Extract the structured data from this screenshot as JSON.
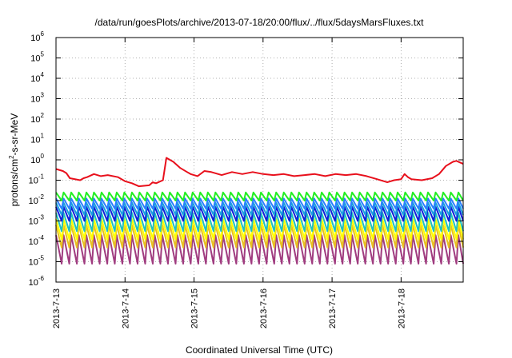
{
  "chart_data": {
    "type": "line",
    "title": "/data/run/goesPlots/archive/2013-07-18/20:00/flux/../flux/5daysMarsFluxes.txt",
    "xlabel": "Coordinated Universal Time (UTC)",
    "ylabel_parts": [
      "protons/cm",
      "2",
      "-s-sr-MeV"
    ],
    "yscale": "log",
    "ylim_exponents": [
      -6,
      6
    ],
    "y_tick_base": "10",
    "y_tick_exponents": [
      "-6",
      "-5",
      "-4",
      "-3",
      "-2",
      "-1",
      "0",
      "1",
      "2",
      "3",
      "4",
      "5",
      "6"
    ],
    "x_range_days": [
      0,
      5.9
    ],
    "x_tick_labels": [
      "2013-7-13",
      "2013-7-14",
      "2013-7-15",
      "2013-7-16",
      "2013-7-17",
      "2013-7-18"
    ],
    "grid": true,
    "colors": {
      "red": "#e8101c",
      "green": "#22ee22",
      "blue1": "#2a7fff",
      "blue2": "#1aa0e0",
      "navy": "#1020d8",
      "teal": "#20c0c0",
      "yellow": "#ffff00",
      "gold": "#e8c020",
      "purple": "#a03c80"
    },
    "series": [
      {
        "color_key": "red",
        "points": [
          [
            0,
            -0.45
          ],
          [
            0.1,
            -0.55
          ],
          [
            0.15,
            -0.65
          ],
          [
            0.2,
            -0.9
          ],
          [
            0.35,
            -1.0
          ],
          [
            0.4,
            -0.9
          ],
          [
            0.45,
            -0.85
          ],
          [
            0.55,
            -0.7
          ],
          [
            0.65,
            -0.8
          ],
          [
            0.75,
            -0.75
          ],
          [
            0.9,
            -0.85
          ],
          [
            1.0,
            -1.05
          ],
          [
            1.1,
            -1.15
          ],
          [
            1.2,
            -1.3
          ],
          [
            1.35,
            -1.25
          ],
          [
            1.4,
            -1.1
          ],
          [
            1.45,
            -1.15
          ],
          [
            1.55,
            -1.0
          ],
          [
            1.6,
            0.1
          ],
          [
            1.7,
            -0.1
          ],
          [
            1.8,
            -0.4
          ],
          [
            1.9,
            -0.6
          ],
          [
            1.95,
            -0.7
          ],
          [
            2.05,
            -0.8
          ],
          [
            2.15,
            -0.55
          ],
          [
            2.25,
            -0.6
          ],
          [
            2.4,
            -0.75
          ],
          [
            2.55,
            -0.6
          ],
          [
            2.7,
            -0.7
          ],
          [
            2.85,
            -0.6
          ],
          [
            3.0,
            -0.7
          ],
          [
            3.15,
            -0.75
          ],
          [
            3.3,
            -0.7
          ],
          [
            3.45,
            -0.8
          ],
          [
            3.6,
            -0.75
          ],
          [
            3.75,
            -0.7
          ],
          [
            3.9,
            -0.8
          ],
          [
            4.05,
            -0.7
          ],
          [
            4.2,
            -0.75
          ],
          [
            4.35,
            -0.7
          ],
          [
            4.5,
            -0.8
          ],
          [
            4.65,
            -0.95
          ],
          [
            4.8,
            -1.1
          ],
          [
            4.9,
            -1.0
          ],
          [
            5.0,
            -0.95
          ],
          [
            5.05,
            -0.7
          ],
          [
            5.1,
            -0.85
          ],
          [
            5.15,
            -0.95
          ],
          [
            5.3,
            -1.0
          ],
          [
            5.45,
            -0.9
          ],
          [
            5.55,
            -0.7
          ],
          [
            5.65,
            -0.3
          ],
          [
            5.75,
            -0.1
          ],
          [
            5.8,
            -0.05
          ],
          [
            5.9,
            -0.2
          ]
        ]
      }
    ],
    "sawtooth_series": [
      {
        "color_key": "green",
        "low": -2.0,
        "high": -1.6
      },
      {
        "color_key": "blue1",
        "low": -2.4,
        "high": -1.9
      },
      {
        "color_key": "blue2",
        "low": -2.7,
        "high": -2.1
      },
      {
        "color_key": "navy",
        "low": -3.0,
        "high": -2.3
      },
      {
        "color_key": "teal",
        "low": -3.5,
        "high": -2.6
      },
      {
        "color_key": "yellow",
        "low": -3.9,
        "high": -2.9
      },
      {
        "color_key": "gold",
        "low": -4.3,
        "high": -3.2
      },
      {
        "color_key": "purple",
        "low": -5.1,
        "high": -3.7
      }
    ]
  }
}
